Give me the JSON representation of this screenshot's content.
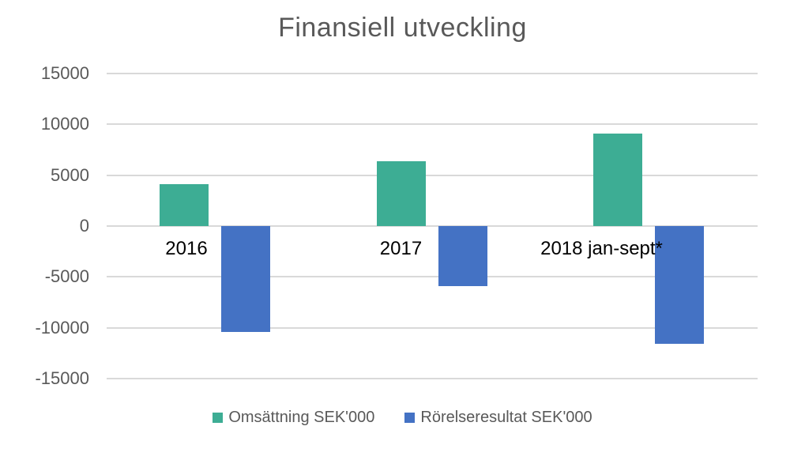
{
  "title": "Finansiell utveckling",
  "colors": {
    "series_green": "#3DAD94",
    "series_blue": "#4472C4",
    "gridline": "#D9D9D9",
    "title_text": "#595959",
    "axis_text": "#595959",
    "category_text": "#000000",
    "legend_text": "#595959",
    "background": "#FFFFFF"
  },
  "chart_data": {
    "type": "bar",
    "title": "Finansiell utveckling",
    "categories": [
      "2016",
      "2017",
      "2018 jan-sept*"
    ],
    "series": [
      {
        "name": "Omsättning SEK'000",
        "color": "#3DAD94",
        "values": [
          4100,
          6400,
          9100
        ]
      },
      {
        "name": "Rörelseresultat SEK'000",
        "color": "#4472C4",
        "values": [
          -10400,
          -5900,
          -11600
        ]
      }
    ],
    "y_ticks": [
      15000,
      10000,
      5000,
      0,
      -5000,
      -10000,
      -15000
    ],
    "ylim": [
      -15000,
      15000
    ],
    "xlabel": "",
    "ylabel": "",
    "grid": true,
    "legend_position": "bottom"
  }
}
